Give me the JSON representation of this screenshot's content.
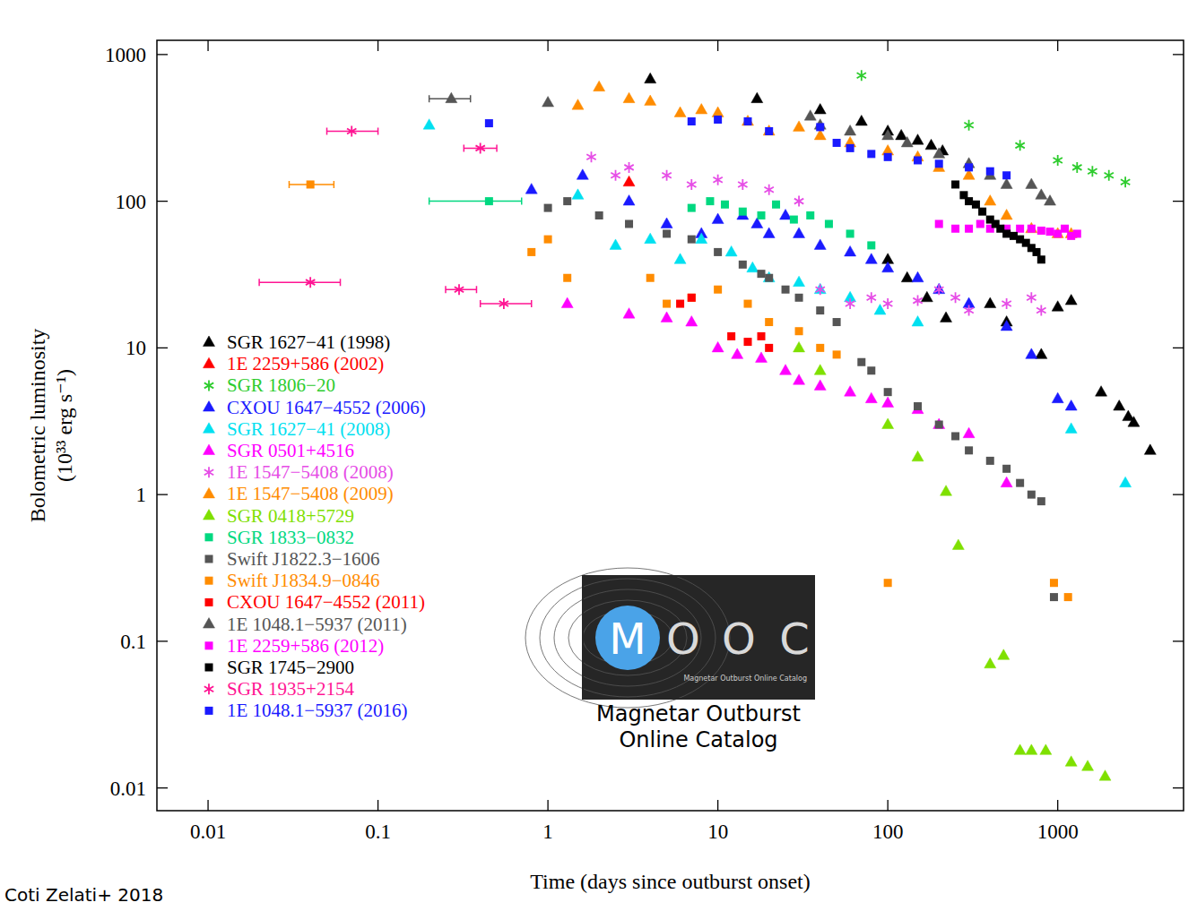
{
  "chart_data": {
    "type": "scatter",
    "log": true,
    "legend": "left",
    "x_label": "Time (days since outburst onset)",
    "y_label": [
      "Bolometric luminosity",
      "(10³³ erg s⁻¹)"
    ],
    "xlim": [
      0.005,
      5500
    ],
    "ylim": [
      0.007,
      1250
    ],
    "xticks": [
      0.01,
      0.1,
      1,
      10,
      100,
      1000
    ],
    "yticks": [
      0.01,
      0.1,
      1,
      10,
      100,
      1000
    ],
    "credit": "Coti Zelati+ 2018",
    "logo": {
      "text": "MOOC",
      "subtitle": "Magnetar Outburst Online Catalog",
      "caption": [
        "Magnetar Outburst",
        "Online Catalog"
      ]
    },
    "series": [
      {
        "name": "SGR 1627−41 (1998)",
        "color": "#000000",
        "marker": "triangle",
        "x": [
          4,
          17,
          40,
          70,
          100,
          120,
          150,
          180,
          210,
          100,
          130,
          170,
          220,
          400,
          500,
          800,
          1000,
          1200,
          1800,
          2300,
          2600,
          2800,
          3500
        ],
        "values": [
          680,
          500,
          420,
          350,
          300,
          280,
          260,
          240,
          220,
          40,
          30,
          22,
          16,
          20,
          15,
          9,
          19,
          21,
          5,
          4,
          3.4,
          3.1,
          2
        ]
      },
      {
        "name": "1E 2259+586 (2002)",
        "color": "#ff0000",
        "marker": "triangle",
        "x": [
          3
        ],
        "values": [
          135
        ]
      },
      {
        "name": "SGR 1806−20",
        "color": "#2ecc2e",
        "marker": "star",
        "x": [
          70,
          300,
          600,
          1000,
          1300,
          1600,
          2000,
          2500
        ],
        "values": [
          720,
          330,
          240,
          190,
          170,
          160,
          150,
          135
        ]
      },
      {
        "name": "CXOU 1647−4552 (2006)",
        "color": "#1a1aff",
        "marker": "triangle",
        "x": [
          0.8,
          1.6,
          3,
          5,
          8,
          10,
          14,
          17,
          20,
          25,
          30,
          40,
          60,
          80,
          100,
          150,
          200,
          300,
          500,
          700,
          1000,
          1200
        ],
        "values": [
          120,
          150,
          100,
          70,
          60,
          75,
          80,
          70,
          60,
          80,
          60,
          50,
          45,
          40,
          35,
          30,
          25,
          20,
          14,
          9,
          4.5,
          4
        ]
      },
      {
        "name": "SGR 1627−41 (2008)",
        "color": "#00e0f0",
        "marker": "triangle",
        "x": [
          0.2,
          1.5,
          2.5,
          4,
          6,
          8,
          12,
          16,
          20,
          30,
          40,
          60,
          90,
          150,
          1200,
          2500
        ],
        "values": [
          330,
          110,
          50,
          55,
          40,
          55,
          45,
          35,
          30,
          28,
          25,
          22,
          18,
          15,
          2.8,
          1.2
        ]
      },
      {
        "name": "SGR 0501+4516",
        "color": "#ff00ff",
        "marker": "triangle",
        "x": [
          1.3,
          3,
          5,
          7,
          10,
          13,
          18,
          25,
          30,
          40,
          60,
          80,
          100,
          150,
          200,
          300,
          500
        ],
        "values": [
          20,
          17,
          16,
          15,
          10,
          9,
          8.5,
          7,
          6,
          5.5,
          5,
          4.5,
          4.2,
          3.8,
          3,
          2.6,
          1.2
        ]
      },
      {
        "name": "1E 1547−5408 (2008)",
        "color": "#e64de6",
        "marker": "star",
        "x": [
          1.8,
          2.5,
          3,
          5,
          7,
          10,
          14,
          20,
          30,
          40,
          60,
          80,
          100,
          150,
          200,
          250,
          300,
          500,
          700,
          800
        ],
        "values": [
          200,
          150,
          170,
          150,
          130,
          140,
          130,
          120,
          100,
          25,
          20,
          22,
          20,
          21,
          25,
          22,
          18,
          20,
          22,
          18
        ]
      },
      {
        "name": "1E 1547−5408 (2009)",
        "color": "#ff8c00",
        "marker": "triangle",
        "x": [
          1.5,
          2,
          3,
          4,
          6,
          8,
          10,
          15,
          20,
          30,
          40,
          60,
          100,
          150,
          200,
          300,
          400,
          500,
          700,
          1000,
          1200
        ],
        "values": [
          450,
          600,
          500,
          480,
          400,
          420,
          400,
          350,
          300,
          320,
          280,
          250,
          220,
          200,
          170,
          150,
          100,
          80,
          65,
          60,
          60
        ]
      },
      {
        "name": "SGR 0418+5729",
        "color": "#7fe000",
        "marker": "triangle",
        "x": [
          30,
          40,
          100,
          150,
          220,
          260,
          400,
          480,
          600,
          700,
          850,
          1200,
          1500,
          1900
        ],
        "values": [
          10,
          7,
          3,
          1.8,
          1.05,
          0.45,
          0.07,
          0.08,
          0.018,
          0.018,
          0.018,
          0.015,
          0.014,
          0.012
        ]
      },
      {
        "name": "SGR 1833−0832",
        "color": "#00d880",
        "marker": "square",
        "x": [
          0.45,
          7,
          9,
          11,
          14,
          18,
          22,
          28,
          35,
          45,
          60,
          80
        ],
        "values": [
          100,
          90,
          100,
          95,
          85,
          80,
          95,
          75,
          80,
          70,
          60,
          50
        ],
        "x_err": [
          [
            0.25,
            0.25
          ],
          null,
          null,
          null,
          null,
          null,
          null,
          null,
          null,
          null,
          null,
          null
        ]
      },
      {
        "name": "Swift J1822.3−1606",
        "color": "#555555",
        "marker": "square",
        "x": [
          1,
          1.3,
          2,
          3,
          5,
          7,
          10,
          14,
          18,
          20,
          25,
          30,
          40,
          50,
          70,
          80,
          100,
          150,
          200,
          250,
          300,
          400,
          500,
          600,
          700,
          800,
          950
        ],
        "values": [
          90,
          100,
          80,
          70,
          60,
          55,
          45,
          37,
          32,
          30,
          25,
          22,
          18,
          15,
          8,
          7,
          5,
          4,
          3,
          2.5,
          2,
          1.7,
          1.5,
          1.2,
          1,
          0.9,
          0.2
        ]
      },
      {
        "name": "Swift J1834.9−0846",
        "color": "#ff8c00",
        "marker": "square",
        "x": [
          0.04,
          0.8,
          1,
          1.3,
          4,
          5,
          7,
          10,
          15,
          20,
          30,
          40,
          50,
          100,
          950,
          1150
        ],
        "values": [
          130,
          45,
          55,
          30,
          30,
          20,
          22,
          25,
          20,
          15,
          13,
          10,
          9,
          0.25,
          0.25,
          0.2
        ],
        "x_err": [
          [
            0.01,
            0.015
          ],
          null,
          null,
          null,
          null,
          null,
          null,
          null,
          null,
          null,
          null,
          null,
          null,
          null,
          null,
          null
        ]
      },
      {
        "name": "CXOU 1647−4552 (2011)",
        "color": "#ff0000",
        "marker": "square",
        "x": [
          6,
          7,
          12,
          15,
          18,
          20
        ],
        "values": [
          20,
          22,
          12,
          11,
          12,
          10
        ]
      },
      {
        "name": "1E 1048.1−5937 (2011)",
        "color": "#555555",
        "marker": "triangle",
        "x": [
          0.27,
          1,
          35,
          40,
          60,
          100,
          130,
          200,
          300,
          400,
          500,
          700,
          800,
          900
        ],
        "values": [
          500,
          470,
          380,
          330,
          300,
          280,
          250,
          210,
          180,
          150,
          130,
          130,
          110,
          100
        ],
        "x_err": [
          [
            0.07,
            0.08
          ],
          null,
          null,
          null,
          null,
          null,
          null,
          null,
          null,
          null,
          null,
          null,
          null,
          null
        ]
      },
      {
        "name": "1E 2259+586 (2012)",
        "color": "#ff00ff",
        "marker": "square",
        "x": [
          200,
          250,
          300,
          350,
          400,
          500,
          600,
          700,
          800,
          900,
          1000,
          1100,
          1200,
          1300
        ],
        "values": [
          70,
          65,
          65,
          70,
          65,
          65,
          65,
          65,
          63,
          62,
          60,
          65,
          58,
          60
        ]
      },
      {
        "name": "SGR 1745−2900",
        "color": "#000000",
        "marker": "square",
        "x": [
          250,
          280,
          300,
          330,
          360,
          400,
          430,
          460,
          500,
          550,
          600,
          650,
          700,
          750,
          800
        ],
        "values": [
          130,
          110,
          100,
          95,
          85,
          75,
          70,
          65,
          60,
          58,
          55,
          52,
          48,
          45,
          40
        ]
      },
      {
        "name": "SGR 1935+2154",
        "color": "#ff1493",
        "marker": "star",
        "x": [
          0.04,
          0.07,
          0.3,
          0.4,
          0.55
        ],
        "values": [
          28,
          300,
          25,
          230,
          20
        ],
        "x_err": [
          [
            0.02,
            0.02
          ],
          [
            0.02,
            0.03
          ],
          [
            0.05,
            0.08
          ],
          [
            0.08,
            0.1
          ],
          [
            0.15,
            0.25
          ]
        ]
      },
      {
        "name": "1E 1048.1−5937 (2016)",
        "color": "#1a1aff",
        "marker": "square",
        "x": [
          0.45,
          7,
          10,
          15,
          20,
          40,
          50,
          60,
          80,
          100,
          150,
          200,
          300,
          400,
          500
        ],
        "values": [
          340,
          350,
          360,
          350,
          300,
          320,
          250,
          230,
          210,
          200,
          190,
          180,
          170,
          160,
          150
        ]
      }
    ]
  }
}
